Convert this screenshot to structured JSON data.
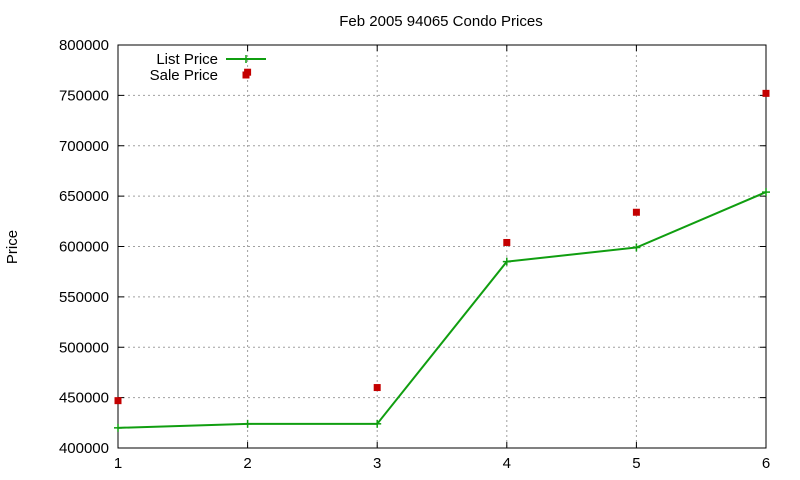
{
  "chart_data": {
    "type": "line",
    "title": "Feb 2005 94065 Condo Prices",
    "xlabel": "",
    "ylabel": "Price",
    "xlim": [
      1,
      6
    ],
    "ylim": [
      400000,
      800000
    ],
    "x_ticks": [
      "1",
      "2",
      "3",
      "4",
      "5",
      "6"
    ],
    "y_ticks": [
      "400000",
      "450000",
      "500000",
      "550000",
      "600000",
      "650000",
      "700000",
      "750000",
      "800000"
    ],
    "grid": true,
    "legend_position": "top-left",
    "series": [
      {
        "name": "List Price",
        "style": "line-with-plus-markers",
        "color": "#109e10",
        "x": [
          1,
          2,
          3,
          4,
          5,
          6
        ],
        "y": [
          420000,
          424000,
          424000,
          585000,
          599000,
          654000
        ]
      },
      {
        "name": "Sale Price",
        "style": "square-markers",
        "color": "#c40000",
        "x": [
          1,
          2,
          3,
          4,
          5,
          6
        ],
        "y": [
          447000,
          773000,
          460000,
          604000,
          634000,
          752000
        ]
      }
    ]
  }
}
